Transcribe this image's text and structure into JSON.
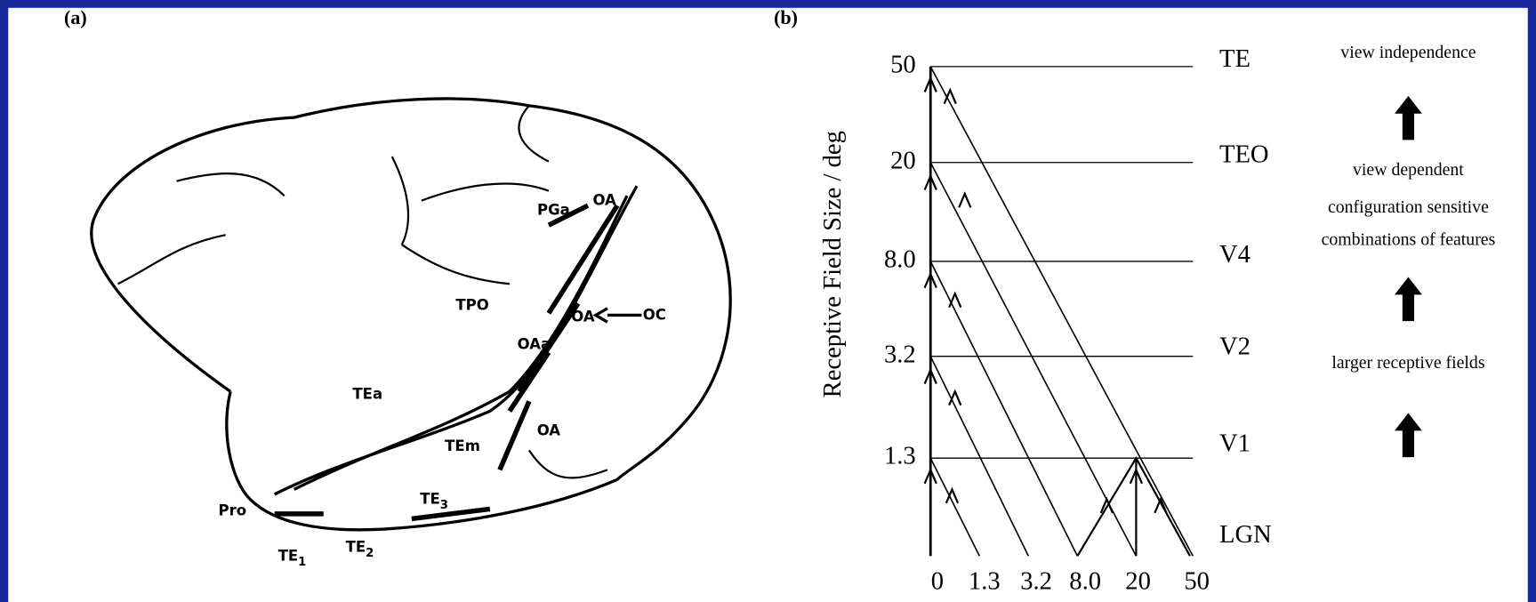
{
  "panel_a": {
    "label": "(a)",
    "regions": [
      {
        "text": "PGa"
      },
      {
        "text": "OA"
      },
      {
        "text": "TPO"
      },
      {
        "text": "OA"
      },
      {
        "text": "OC"
      },
      {
        "text": "OAa"
      },
      {
        "text": "TEa"
      },
      {
        "text": "OA"
      },
      {
        "text": "TEm"
      },
      {
        "text": "TE",
        "sub": "3"
      },
      {
        "text": "Pro"
      },
      {
        "text": "TE",
        "sub": "1"
      },
      {
        "text": "TE",
        "sub": "2"
      }
    ]
  },
  "panel_b": {
    "label": "(b)",
    "y_axis_label": "Receptive Field Size / deg",
    "y_labels": [
      "50",
      "20",
      "8.0",
      "3.2",
      "1.3"
    ],
    "x_labels": [
      "0",
      "1.3",
      "3.2",
      "8.0",
      "20",
      "50"
    ],
    "levels": [
      "TE",
      "TEO",
      "V4",
      "V2",
      "V1",
      "LGN"
    ],
    "annotations": [
      "view independence",
      "view dependent",
      "configuration sensitive",
      "combinations of features",
      "larger receptive fields"
    ]
  }
}
